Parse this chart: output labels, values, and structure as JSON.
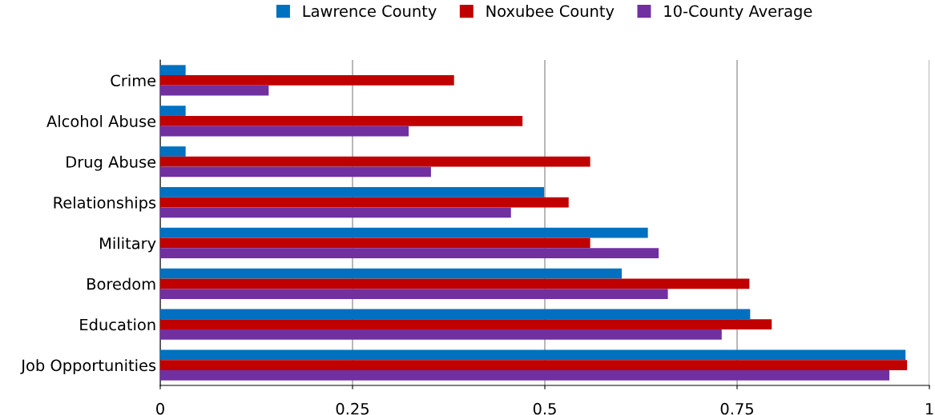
{
  "chart_data": {
    "type": "bar",
    "orientation": "horizontal",
    "categories": [
      "Crime",
      "Alcohol Abuse",
      "Drug Abuse",
      "Relationships",
      "Military",
      "Boredom",
      "Education",
      "Job Opportunities"
    ],
    "series": [
      {
        "name": "Lawrence County",
        "color": "#0070c0",
        "values": [
          0.033,
          0.033,
          0.033,
          0.499,
          0.634,
          0.6,
          0.767,
          0.969
        ]
      },
      {
        "name": "Noxubee County",
        "color": "#c00000",
        "values": [
          0.382,
          0.471,
          0.559,
          0.531,
          0.559,
          0.766,
          0.795,
          0.971
        ]
      },
      {
        "name": "10-County Average",
        "color": "#7030a0",
        "values": [
          0.141,
          0.323,
          0.352,
          0.456,
          0.648,
          0.66,
          0.73,
          0.948
        ]
      }
    ],
    "xlim": [
      0,
      1
    ],
    "xticks": [
      0,
      0.25,
      0.5,
      0.75,
      1
    ],
    "grid": "x",
    "legend": "top"
  }
}
